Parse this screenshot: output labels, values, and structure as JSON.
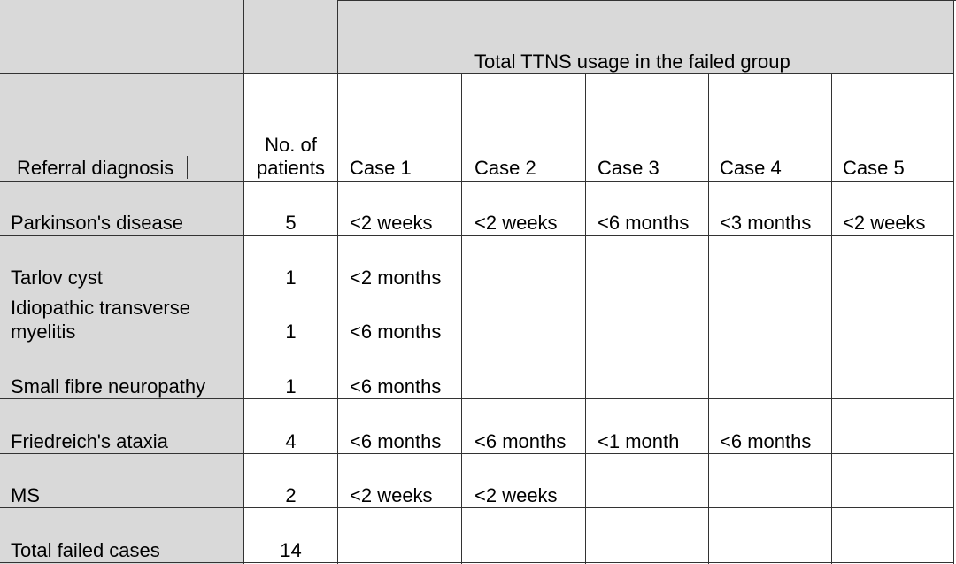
{
  "table": {
    "group_header": "Total TTNS usage in the failed group",
    "headers": {
      "diagnosis": "Referral diagnosis",
      "patients_line1": "No. of",
      "patients_line2": "patients",
      "cases": [
        "Case 1",
        "Case 2",
        "Case 3",
        "Case 4",
        "Case 5"
      ]
    },
    "rows": [
      {
        "diagnosis": "Parkinson's disease",
        "patients": "5",
        "cases": [
          "<2 weeks",
          "<2 weeks",
          "<6 months",
          "<3 months",
          "<2 weeks"
        ]
      },
      {
        "diagnosis": "Tarlov cyst",
        "patients": "1",
        "cases": [
          "<2 months",
          "",
          "",
          "",
          ""
        ]
      },
      {
        "diagnosis_line1": "Idiopathic transverse",
        "diagnosis_line2": "myelitis",
        "patients": "1",
        "cases": [
          "<6 months",
          "",
          "",
          "",
          ""
        ]
      },
      {
        "diagnosis": "Small fibre neuropathy",
        "patients": "1",
        "cases": [
          "<6 months",
          "",
          "",
          "",
          ""
        ]
      },
      {
        "diagnosis": "Friedreich's ataxia",
        "patients": "4",
        "cases": [
          "<6 months",
          "<6 months",
          "<1 month",
          "<6 months",
          ""
        ]
      },
      {
        "diagnosis": "MS",
        "patients": "2",
        "cases": [
          "<2 weeks",
          "<2 weeks",
          "",
          "",
          ""
        ]
      },
      {
        "diagnosis": "Total failed cases",
        "patients": "14",
        "cases": [
          "",
          "",
          "",
          "",
          ""
        ]
      }
    ]
  }
}
